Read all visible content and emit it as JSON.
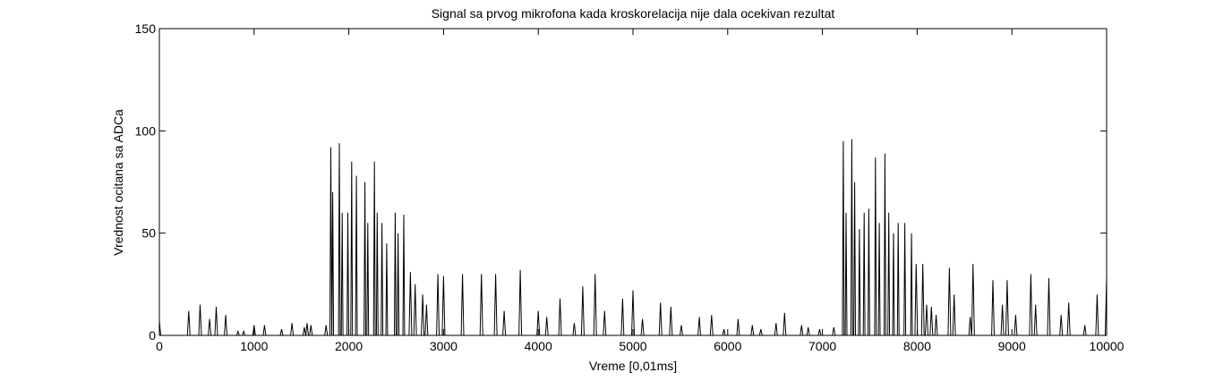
{
  "chart_data": {
    "type": "line",
    "title": "Signal sa prvog mikrofona kada kroskorelacija nije dala ocekivan rezultat",
    "xlabel": "Vreme [0,01ms]",
    "ylabel": "Vrednost ocitana sa ADCa",
    "xlim": [
      0,
      10000
    ],
    "ylim": [
      0,
      150
    ],
    "xticks": [
      0,
      1000,
      2000,
      3000,
      4000,
      5000,
      6000,
      7000,
      8000,
      9000,
      10000
    ],
    "yticks": [
      0,
      50,
      100,
      150
    ],
    "grid": false,
    "legend": "none",
    "line_color": "#000000",
    "series": [
      {
        "name": "",
        "peaks": [
          [
            0,
            7
          ],
          [
            310,
            12
          ],
          [
            430,
            15
          ],
          [
            530,
            8
          ],
          [
            600,
            14
          ],
          [
            700,
            10
          ],
          [
            830,
            2
          ],
          [
            890,
            2
          ],
          [
            1000,
            5
          ],
          [
            1110,
            5
          ],
          [
            1290,
            3
          ],
          [
            1400,
            6
          ],
          [
            1530,
            4
          ],
          [
            1560,
            6
          ],
          [
            1600,
            5
          ],
          [
            1760,
            5
          ],
          [
            1810,
            92
          ],
          [
            1830,
            70
          ],
          [
            1900,
            94
          ],
          [
            1930,
            60
          ],
          [
            1990,
            60
          ],
          [
            2030,
            85
          ],
          [
            2080,
            78
          ],
          [
            2170,
            75
          ],
          [
            2200,
            55
          ],
          [
            2270,
            85
          ],
          [
            2300,
            60
          ],
          [
            2350,
            55
          ],
          [
            2400,
            45
          ],
          [
            2490,
            60
          ],
          [
            2520,
            50
          ],
          [
            2580,
            59
          ],
          [
            2650,
            31
          ],
          [
            2700,
            25
          ],
          [
            2780,
            20
          ],
          [
            2820,
            15
          ],
          [
            2940,
            30
          ],
          [
            3000,
            29
          ],
          [
            3200,
            30
          ],
          [
            3400,
            30
          ],
          [
            3550,
            30
          ],
          [
            3640,
            12
          ],
          [
            3810,
            32
          ],
          [
            4000,
            12
          ],
          [
            4090,
            9
          ],
          [
            4230,
            18
          ],
          [
            4380,
            6
          ],
          [
            4470,
            24
          ],
          [
            4600,
            30
          ],
          [
            4700,
            12
          ],
          [
            4890,
            18
          ],
          [
            5000,
            22
          ],
          [
            5100,
            8
          ],
          [
            5290,
            16
          ],
          [
            5400,
            14
          ],
          [
            5510,
            5
          ],
          [
            5700,
            9
          ],
          [
            5830,
            10
          ],
          [
            5960,
            3
          ],
          [
            6110,
            8
          ],
          [
            6260,
            5
          ],
          [
            6350,
            3
          ],
          [
            6510,
            6
          ],
          [
            6600,
            11
          ],
          [
            6780,
            5
          ],
          [
            6850,
            4
          ],
          [
            6970,
            3
          ],
          [
            7120,
            4
          ],
          [
            7220,
            95
          ],
          [
            7250,
            60
          ],
          [
            7310,
            96
          ],
          [
            7340,
            75
          ],
          [
            7390,
            52
          ],
          [
            7440,
            60
          ],
          [
            7490,
            62
          ],
          [
            7560,
            87
          ],
          [
            7600,
            55
          ],
          [
            7660,
            89
          ],
          [
            7700,
            60
          ],
          [
            7750,
            50
          ],
          [
            7800,
            55
          ],
          [
            7870,
            55
          ],
          [
            7940,
            50
          ],
          [
            7990,
            35
          ],
          [
            8060,
            35
          ],
          [
            8100,
            15
          ],
          [
            8150,
            14
          ],
          [
            8200,
            10
          ],
          [
            8340,
            33
          ],
          [
            8390,
            20
          ],
          [
            8560,
            9
          ],
          [
            8590,
            35
          ],
          [
            8800,
            27
          ],
          [
            8900,
            15
          ],
          [
            8950,
            27
          ],
          [
            9040,
            10
          ],
          [
            9200,
            30
          ],
          [
            9250,
            15
          ],
          [
            9390,
            28
          ],
          [
            9520,
            10
          ],
          [
            9600,
            16
          ],
          [
            9770,
            5
          ],
          [
            9900,
            20
          ],
          [
            10000,
            29
          ]
        ]
      }
    ]
  }
}
